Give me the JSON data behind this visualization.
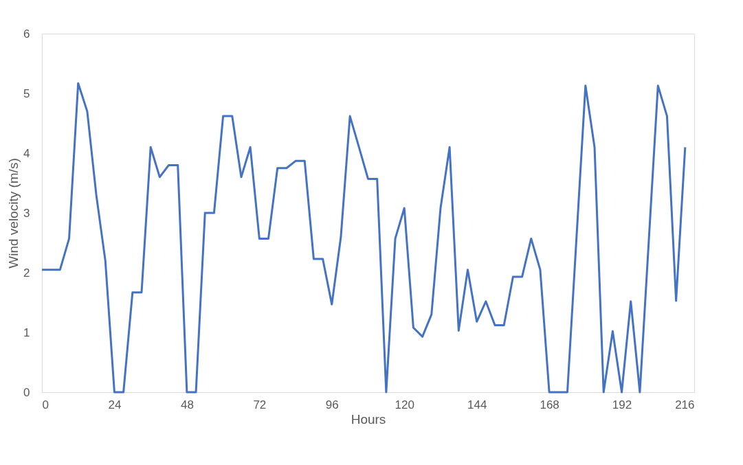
{
  "chart_data": {
    "type": "line",
    "xlabel": "Hours",
    "ylabel": "Wind velocity (m/s)",
    "xlim": [
      0,
      216
    ],
    "xticks": [
      0,
      24,
      48,
      72,
      96,
      120,
      144,
      168,
      192,
      216
    ],
    "ylim": [
      0,
      6
    ],
    "yticks": [
      0,
      1,
      2,
      3,
      4,
      5,
      6
    ],
    "grid": false,
    "marker": "none",
    "line_style": "solid",
    "series": [
      {
        "color": "#4472c4",
        "x": [
          0,
          3,
          6,
          9,
          12,
          15,
          18,
          21,
          24,
          27,
          30,
          33,
          36,
          39,
          42,
          45,
          48,
          51,
          54,
          57,
          60,
          63,
          66,
          69,
          72,
          75,
          78,
          81,
          84,
          87,
          90,
          93,
          96,
          99,
          102,
          105,
          108,
          111,
          114,
          117,
          120,
          123,
          126,
          129,
          132,
          135,
          138,
          141,
          144,
          147,
          150,
          153,
          156,
          159,
          162,
          165,
          168,
          171,
          174,
          180,
          183,
          186,
          189,
          192,
          195,
          198,
          204,
          207,
          210,
          213
        ],
        "values": [
          2.05,
          2.05,
          2.05,
          2.57,
          5.17,
          4.7,
          3.3,
          2.2,
          0,
          0,
          1.67,
          1.67,
          4.1,
          3.6,
          3.8,
          3.8,
          0,
          0,
          3.0,
          3.0,
          4.62,
          4.62,
          3.6,
          4.1,
          2.57,
          2.57,
          3.75,
          3.75,
          3.87,
          3.87,
          2.23,
          2.23,
          1.47,
          2.6,
          4.62,
          4.1,
          3.57,
          3.57,
          0,
          2.57,
          3.08,
          1.08,
          0.93,
          1.3,
          3.08,
          4.1,
          1.03,
          2.05,
          1.18,
          1.52,
          1.12,
          1.12,
          1.93,
          1.93,
          2.57,
          2.05,
          0,
          0,
          0,
          5.13,
          4.1,
          0,
          1.02,
          0,
          1.52,
          0,
          5.13,
          4.62,
          1.53,
          4.1
        ]
      }
    ]
  }
}
